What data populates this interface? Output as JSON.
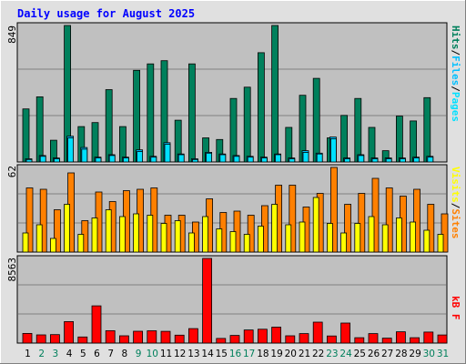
{
  "title": "Daily usage for August 2025",
  "colors": {
    "hits": "#00805c",
    "files": "#00c0ff",
    "pages": "#00e0ff",
    "visits": "#ffff00",
    "sites": "#ff8000",
    "kbytes": "#ff0000",
    "title": "#0000ff",
    "weekend_day": "#00805c",
    "weekday": "#000000",
    "panel_bg": "#c0c0c0",
    "outer_bg": "#e0e0e0"
  },
  "chart_data": [
    {
      "type": "bar",
      "panel": "hits-files-pages",
      "categories": [
        "1",
        "2",
        "3",
        "4",
        "5",
        "6",
        "7",
        "8",
        "9",
        "10",
        "11",
        "12",
        "13",
        "14",
        "15",
        "16",
        "17",
        "18",
        "19",
        "20",
        "21",
        "22",
        "23",
        "24",
        "25",
        "26",
        "27",
        "28",
        "29",
        "30",
        "31"
      ],
      "ymax_label": "849",
      "ylim": [
        0,
        849
      ],
      "legend": [
        "Pages",
        "Files",
        "Hits"
      ],
      "series": [
        {
          "name": "Hits",
          "values": [
            330,
            405,
            135,
            849,
            220,
            245,
            450,
            220,
            570,
            610,
            630,
            260,
            610,
            150,
            140,
            395,
            465,
            680,
            849,
            215,
            415,
            520,
            150,
            290,
            395,
            215,
            70,
            285,
            255,
            400,
            0
          ]
        },
        {
          "name": "Files",
          "values": [
            20,
            40,
            25,
            160,
            90,
            30,
            45,
            30,
            75,
            35,
            120,
            50,
            20,
            60,
            50,
            40,
            35,
            30,
            50,
            25,
            70,
            55,
            155,
            25,
            45,
            25,
            25,
            25,
            30,
            35,
            0
          ]
        },
        {
          "name": "Pages",
          "values": [
            15,
            35,
            20,
            150,
            80,
            25,
            40,
            25,
            65,
            30,
            110,
            45,
            15,
            55,
            45,
            35,
            30,
            25,
            45,
            20,
            60,
            50,
            145,
            20,
            40,
            20,
            20,
            20,
            25,
            30,
            0
          ]
        }
      ]
    },
    {
      "type": "bar",
      "panel": "visits-sites",
      "categories": [
        "1",
        "2",
        "3",
        "4",
        "5",
        "6",
        "7",
        "8",
        "9",
        "10",
        "11",
        "12",
        "13",
        "14",
        "15",
        "16",
        "17",
        "18",
        "19",
        "20",
        "21",
        "22",
        "23",
        "24",
        "25",
        "26",
        "27",
        "28",
        "29",
        "30",
        "31"
      ],
      "ymax_label": "62",
      "ylim": [
        0,
        62
      ],
      "legend": [
        "Sites",
        "Visits"
      ],
      "series": [
        {
          "name": "Visits",
          "values": [
            14,
            20,
            10,
            35,
            13,
            25,
            31,
            26,
            28,
            27,
            21,
            23,
            14,
            26,
            17,
            15,
            13,
            19,
            35,
            20,
            22,
            40,
            21,
            14,
            21,
            26,
            20,
            25,
            22,
            16,
            13
          ]
        },
        {
          "name": "Sites",
          "values": [
            47,
            46,
            31,
            58,
            23,
            44,
            37,
            45,
            46,
            47,
            27,
            27,
            22,
            39,
            29,
            30,
            27,
            34,
            49,
            49,
            33,
            43,
            62,
            35,
            43,
            54,
            47,
            41,
            46,
            35,
            28
          ]
        }
      ]
    },
    {
      "type": "bar",
      "panel": "kbytes",
      "categories": [
        "1",
        "2",
        "3",
        "4",
        "5",
        "6",
        "7",
        "8",
        "9",
        "10",
        "11",
        "12",
        "13",
        "14",
        "15",
        "16",
        "17",
        "18",
        "19",
        "20",
        "21",
        "22",
        "23",
        "24",
        "25",
        "26",
        "27",
        "28",
        "29",
        "30",
        "31"
      ],
      "ymax_label": "8563",
      "ylim": [
        0,
        8563
      ],
      "legend": [
        "kB F"
      ],
      "series": [
        {
          "name": "kB F",
          "values": [
            980,
            830,
            860,
            2170,
            620,
            3770,
            1250,
            740,
            1200,
            1240,
            1190,
            800,
            1460,
            8563,
            470,
            770,
            1330,
            1400,
            1610,
            740,
            960,
            2120,
            720,
            2030,
            540,
            960,
            500,
            1140,
            540,
            1110,
            820
          ]
        }
      ]
    }
  ],
  "x_day_labels": [
    "1",
    "2",
    "3",
    "4",
    "5",
    "6",
    "7",
    "8",
    "9",
    "10",
    "11",
    "12",
    "13",
    "14",
    "15",
    "16",
    "17",
    "18",
    "19",
    "20",
    "21",
    "22",
    "23",
    "24",
    "25",
    "26",
    "27",
    "28",
    "29",
    "30",
    "31"
  ],
  "weekend_days": [
    2,
    3,
    9,
    10,
    16,
    17,
    23,
    24,
    30,
    31
  ]
}
